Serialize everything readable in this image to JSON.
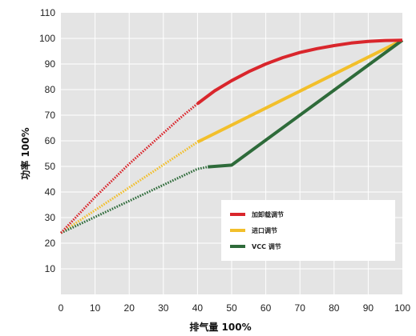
{
  "chart_data": {
    "type": "line",
    "xlabel": "排气量 100%",
    "ylabel": "功率 100%",
    "xlim": [
      0,
      100
    ],
    "ylim": [
      0,
      110
    ],
    "x_ticks": [
      "0",
      "10",
      "20",
      "30",
      "40",
      "50",
      "60",
      "70",
      "80",
      "90",
      "100"
    ],
    "y_ticks": [
      "10",
      "20",
      "30",
      "40",
      "50",
      "60",
      "70",
      "80",
      "90",
      "100",
      "110"
    ],
    "grid": true,
    "legend_position": "lower-right",
    "background": "#e4e4e4",
    "series": [
      {
        "name": "加卸载调节",
        "color": "#d9262c",
        "dotted_segment": {
          "x": [
            0,
            5,
            10,
            15,
            20,
            25,
            30,
            35,
            40
          ],
          "y": [
            24,
            31,
            38,
            44.5,
            51,
            57,
            63,
            69,
            74.5
          ]
        },
        "solid_segment": {
          "x": [
            40,
            45,
            50,
            55,
            60,
            65,
            70,
            75,
            80,
            85,
            90,
            95,
            100
          ],
          "y": [
            74.5,
            79.5,
            83.5,
            87,
            90,
            92.5,
            94.5,
            96,
            97.2,
            98.2,
            98.8,
            99.2,
            99.3
          ]
        }
      },
      {
        "name": "进口调节",
        "color": "#f2bf2b",
        "dotted_segment": {
          "x": [
            0,
            40
          ],
          "y": [
            24,
            59.5
          ]
        },
        "solid_segment": {
          "x": [
            40,
            100
          ],
          "y": [
            59.5,
            99.3
          ]
        }
      },
      {
        "name": "VCC 调节",
        "color": "#2e6b3a",
        "dotted_segment": {
          "x": [
            0,
            40,
            43
          ],
          "y": [
            24,
            49,
            49.8
          ]
        },
        "solid_segment": {
          "x": [
            43,
            50,
            100
          ],
          "y": [
            49.8,
            50.5,
            99.3
          ]
        }
      }
    ]
  }
}
